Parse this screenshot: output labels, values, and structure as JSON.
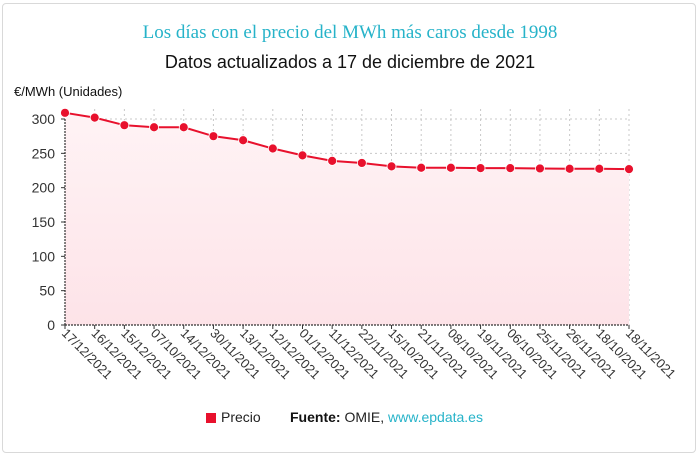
{
  "title": "Los días con el precio del MWh más caros desde 1998",
  "subtitle": "Datos actualizados a 17 de diciembre de 2021",
  "legend": {
    "label": "Precio"
  },
  "source": {
    "prefix": "Fuente:",
    "text": " OMIE, ",
    "link": "www.epdata.es"
  },
  "colors": {
    "series": "#e8112d",
    "title": "#26b3c9",
    "fill": "#fde8ec"
  },
  "chart_data": {
    "type": "line",
    "title": "Los días con el precio del MWh más caros desde 1998",
    "subtitle": "Datos actualizados a 17 de diciembre de 2021",
    "ylabel": "€/MWh (Unidades)",
    "xlabel": "",
    "ylim": [
      0,
      300
    ],
    "yticks": [
      0,
      50,
      100,
      150,
      200,
      250,
      300
    ],
    "grid": true,
    "legend_position": "bottom",
    "categories": [
      "17/12/2021",
      "16/12/2021",
      "15/12/2021",
      "07/10/2021",
      "14/12/2021",
      "30/11/2021",
      "13/12/2021",
      "12/12/2021",
      "01/12/2021",
      "11/12/2021",
      "22/11/2021",
      "15/10/2021",
      "21/11/2021",
      "08/10/2021",
      "19/11/2021",
      "06/10/2021",
      "25/11/2021",
      "26/11/2021",
      "18/10/2021",
      "18/11/2021"
    ],
    "series": [
      {
        "name": "Precio",
        "values": [
          309,
          302,
          291,
          288,
          288,
          275,
          269,
          257,
          247,
          239,
          236,
          231,
          229,
          229,
          228.5,
          228.5,
          228,
          227.5,
          227.5,
          227
        ]
      }
    ]
  }
}
